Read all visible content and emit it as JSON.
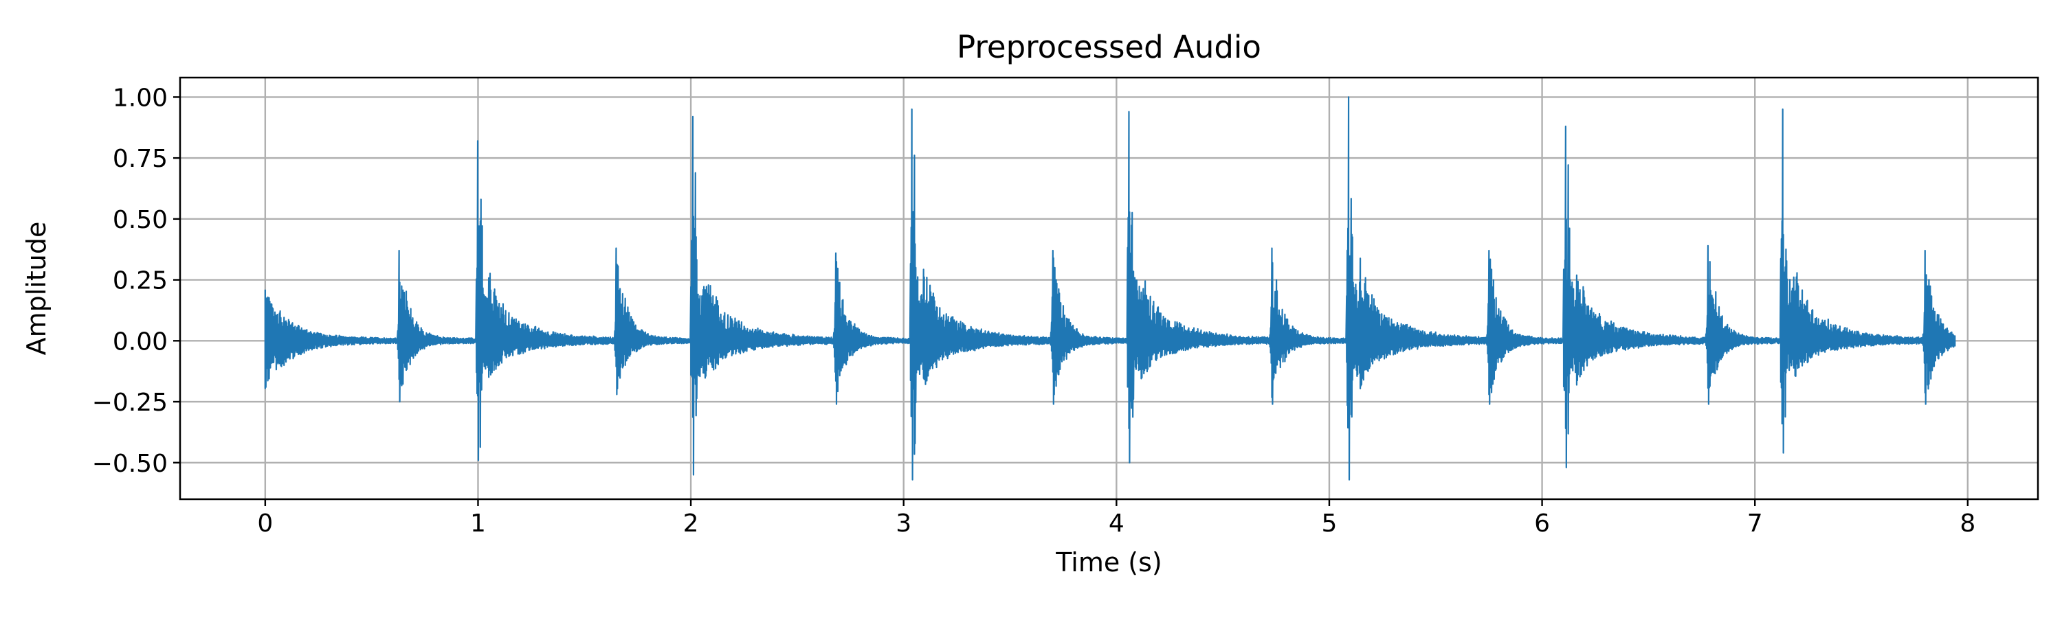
{
  "chart_data": {
    "type": "line",
    "title": "Preprocessed Audio",
    "xlabel": "Time (s)",
    "ylabel": "Amplitude",
    "xlim": [
      -0.4,
      8.33
    ],
    "ylim": [
      -0.65,
      1.08
    ],
    "x_ticks": [
      0,
      1,
      2,
      3,
      4,
      5,
      6,
      7,
      8
    ],
    "x_tick_labels": [
      "0",
      "1",
      "2",
      "3",
      "4",
      "5",
      "6",
      "7",
      "8"
    ],
    "y_ticks": [
      1.0,
      0.75,
      0.5,
      0.25,
      0.0,
      -0.25,
      -0.5
    ],
    "y_tick_labels": [
      "1.00",
      "0.75",
      "0.50",
      "0.25",
      "0.00",
      "−0.25",
      "−0.50"
    ],
    "grid": true,
    "line_color": "#1f77b4",
    "signal_duration": 7.94,
    "baseline_noise": 0.008,
    "events": [
      {
        "t": 0.0,
        "type": "small",
        "max": 0.21,
        "min": -0.19,
        "decay": 0.12
      },
      {
        "t": 0.63,
        "type": "small",
        "max": 0.37,
        "min": -0.25,
        "decay": 0.05
      },
      {
        "t": 1.0,
        "type": "big",
        "max": 0.82,
        "min": -0.49,
        "decay": 0.16
      },
      {
        "t": 1.65,
        "type": "small",
        "max": 0.38,
        "min": -0.22,
        "decay": 0.05
      },
      {
        "t": 2.01,
        "type": "big",
        "max": 0.92,
        "min": -0.55,
        "decay": 0.16
      },
      {
        "t": 2.68,
        "type": "small",
        "max": 0.36,
        "min": -0.26,
        "decay": 0.05
      },
      {
        "t": 3.04,
        "type": "big",
        "max": 0.95,
        "min": -0.57,
        "decay": 0.16
      },
      {
        "t": 3.7,
        "type": "small",
        "max": 0.37,
        "min": -0.26,
        "decay": 0.05
      },
      {
        "t": 4.06,
        "type": "big",
        "max": 0.94,
        "min": -0.5,
        "decay": 0.16
      },
      {
        "t": 4.73,
        "type": "small",
        "max": 0.38,
        "min": -0.26,
        "decay": 0.05
      },
      {
        "t": 5.09,
        "type": "big",
        "max": 1.0,
        "min": -0.57,
        "decay": 0.16
      },
      {
        "t": 5.75,
        "type": "small",
        "max": 0.37,
        "min": -0.26,
        "decay": 0.05
      },
      {
        "t": 6.11,
        "type": "big",
        "max": 0.88,
        "min": -0.52,
        "decay": 0.16
      },
      {
        "t": 6.78,
        "type": "small",
        "max": 0.39,
        "min": -0.26,
        "decay": 0.05
      },
      {
        "t": 7.13,
        "type": "big",
        "max": 0.95,
        "min": -0.46,
        "decay": 0.16
      },
      {
        "t": 7.8,
        "type": "small",
        "max": 0.37,
        "min": -0.26,
        "decay": 0.05
      }
    ]
  }
}
